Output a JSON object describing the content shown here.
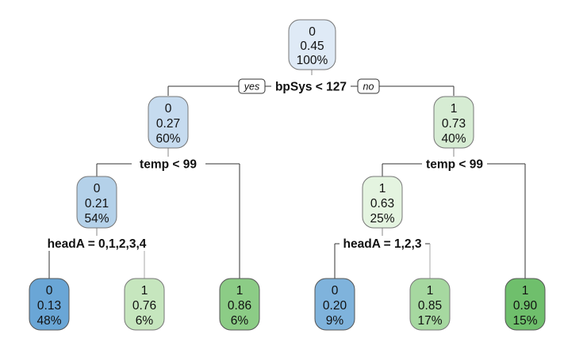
{
  "root_branch_labels": {
    "yes": "yes",
    "no": "no"
  },
  "splits": {
    "root": "bpSys < 127",
    "left": "temp < 99",
    "right": "temp < 99",
    "left_left": "headA = 0,1,2,3,4",
    "right_left": "headA = 1,2,3"
  },
  "nodes": {
    "root": {
      "class": "0",
      "prob": "0.45",
      "pct": "100%",
      "fill": "#dfeaf6"
    },
    "n2": {
      "class": "0",
      "prob": "0.27",
      "pct": "60%",
      "fill": "#c6dbef"
    },
    "n3": {
      "class": "1",
      "prob": "0.73",
      "pct": "40%",
      "fill": "#d6ecd3"
    },
    "n4": {
      "class": "0",
      "prob": "0.21",
      "pct": "54%",
      "fill": "#b4d1e9"
    },
    "n6": {
      "class": "1",
      "prob": "0.63",
      "pct": "25%",
      "fill": "#e4f4e0"
    },
    "leaf1": {
      "class": "0",
      "prob": "0.13",
      "pct": "48%",
      "fill": "#6aa6d6"
    },
    "leaf2": {
      "class": "1",
      "prob": "0.76",
      "pct": "6%",
      "fill": "#c6e6be"
    },
    "leaf3": {
      "class": "1",
      "prob": "0.86",
      "pct": "6%",
      "fill": "#8ccc86"
    },
    "leaf4": {
      "class": "0",
      "prob": "0.20",
      "pct": "9%",
      "fill": "#7fb3dc"
    },
    "leaf5": {
      "class": "1",
      "prob": "0.85",
      "pct": "17%",
      "fill": "#a6d8a0"
    },
    "leaf6": {
      "class": "1",
      "prob": "0.90",
      "pct": "15%",
      "fill": "#6fbf6c"
    }
  }
}
